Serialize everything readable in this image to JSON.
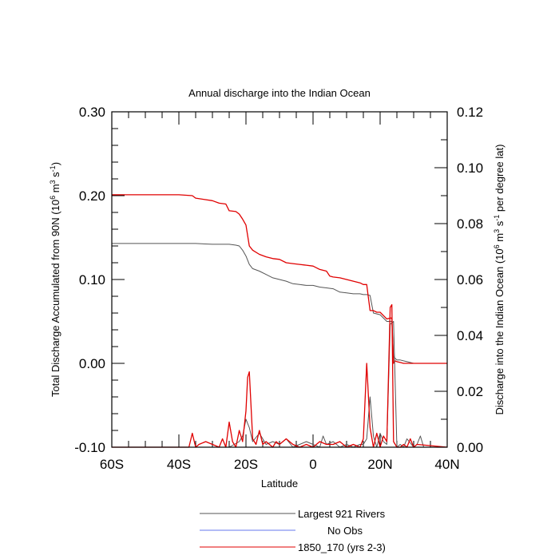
{
  "chart_data": {
    "type": "line",
    "title": "Annual discharge into the Indian Ocean",
    "xlabel": "Latitude",
    "ylabel_left_main": "Total Discharge Accumulated from 90N (10",
    "ylabel_left_exp1": "6",
    "ylabel_left_mid": " m",
    "ylabel_left_exp2": "3",
    "ylabel_left_mid2": " s",
    "ylabel_left_exp3": "-1",
    "ylabel_left_end": ")",
    "ylabel_right_main": "Discharge into the Indian Ocean (10",
    "ylabel_right_exp1": "6",
    "ylabel_right_mid": " m",
    "ylabel_right_exp2": "3",
    "ylabel_right_mid2": " s",
    "ylabel_right_exp3": "-1",
    "ylabel_right_end": " per degree lat)",
    "xlim": [
      -60,
      40
    ],
    "ylim_left": [
      -0.1,
      0.3
    ],
    "ylim_right": [
      0,
      0.12
    ],
    "x_ticks": [
      {
        "value": -60,
        "label": "60S"
      },
      {
        "value": -40,
        "label": "40S"
      },
      {
        "value": -20,
        "label": "20S"
      },
      {
        "value": 0,
        "label": "0"
      },
      {
        "value": 20,
        "label": "20N"
      },
      {
        "value": 40,
        "label": "40N"
      }
    ],
    "y_left_ticks": [
      {
        "value": 0.3,
        "label": "0.30"
      },
      {
        "value": 0.2,
        "label": "0.20"
      },
      {
        "value": 0.1,
        "label": "0.10"
      },
      {
        "value": 0.0,
        "label": "0.00"
      },
      {
        "value": -0.1,
        "label": "-0.10"
      }
    ],
    "y_right_ticks": [
      {
        "value": 0.12,
        "label": "0.12"
      },
      {
        "value": 0.1,
        "label": "0.10"
      },
      {
        "value": 0.08,
        "label": "0.08"
      },
      {
        "value": 0.06,
        "label": "0.06"
      },
      {
        "value": 0.04,
        "label": "0.04"
      },
      {
        "value": 0.02,
        "label": "0.02"
      },
      {
        "value": 0.0,
        "label": "0.00"
      }
    ],
    "legend_placement": "bottom-center",
    "series": [
      {
        "name": "Largest 921 Rivers",
        "color": "#555555",
        "axis": "left",
        "x": [
          -60,
          -45,
          -35,
          -30,
          -25,
          -23,
          -22,
          -21,
          -20,
          -19,
          -18,
          -16,
          -14,
          -12,
          -10,
          -8,
          -6,
          -4,
          -2,
          0,
          2,
          4,
          6,
          8,
          10,
          12,
          14,
          15,
          16,
          17,
          18,
          20,
          22,
          23,
          23.5,
          24,
          25,
          26,
          27,
          28,
          30,
          32,
          35,
          40
        ],
        "y": [
          0.143,
          0.143,
          0.143,
          0.142,
          0.142,
          0.141,
          0.14,
          0.135,
          0.128,
          0.118,
          0.113,
          0.11,
          0.106,
          0.102,
          0.1,
          0.098,
          0.095,
          0.094,
          0.093,
          0.093,
          0.091,
          0.09,
          0.089,
          0.085,
          0.084,
          0.083,
          0.083,
          0.082,
          0.082,
          0.081,
          0.06,
          0.058,
          0.05,
          0.05,
          0.05,
          0.008,
          0.004,
          0.004,
          0.003,
          0.002,
          0.0,
          0.0,
          0.0,
          0.0
        ]
      },
      {
        "name": "No Obs",
        "color": "#6677ee",
        "axis": "left",
        "x": [],
        "y": []
      },
      {
        "name": "1850_170 (yrs 2-3)",
        "color": "#e00000",
        "axis": "left",
        "x": [
          -60,
          -50,
          -40,
          -36,
          -35,
          -30,
          -28,
          -26,
          -25,
          -23,
          -22,
          -21,
          -20,
          -19,
          -18,
          -16,
          -14,
          -12,
          -10,
          -8,
          -6,
          -4,
          -2,
          0,
          2,
          4,
          5,
          6,
          8,
          10,
          12,
          14,
          15,
          16,
          17,
          18,
          19,
          20,
          22,
          23,
          23.5,
          24,
          24.5,
          25,
          26,
          27,
          28,
          30,
          40
        ],
        "y": [
          0.201,
          0.201,
          0.201,
          0.2,
          0.197,
          0.194,
          0.191,
          0.19,
          0.182,
          0.181,
          0.178,
          0.172,
          0.165,
          0.14,
          0.135,
          0.13,
          0.127,
          0.125,
          0.124,
          0.12,
          0.119,
          0.118,
          0.117,
          0.116,
          0.112,
          0.11,
          0.104,
          0.103,
          0.102,
          0.1,
          0.098,
          0.096,
          0.094,
          0.094,
          0.063,
          0.063,
          0.061,
          0.061,
          0.053,
          0.054,
          0.054,
          0.0,
          0.003,
          0.002,
          0.001,
          0.0,
          0.0,
          0.0,
          0.0
        ]
      },
      {
        "name": "Largest 921 Rivers",
        "color": "#555555",
        "axis": "right",
        "x": [
          -60,
          -30,
          -25,
          -22,
          -21,
          -20,
          -19,
          -18,
          -16,
          -14,
          -12,
          -10,
          -8,
          -6,
          -4,
          -2,
          0,
          2,
          3,
          4,
          6,
          8,
          10,
          12,
          14,
          15,
          16,
          17,
          18,
          19,
          20,
          21,
          22,
          23,
          24,
          25,
          26,
          27,
          28,
          30,
          31,
          32,
          33,
          40
        ],
        "y": [
          0,
          0,
          0,
          0.002,
          0.004,
          0.01,
          0.007,
          0.002,
          0.005,
          0.001,
          0.002,
          0.001,
          0.003,
          0,
          0.001,
          0.002,
          0.001,
          0,
          0.004,
          0.001,
          0.002,
          0,
          0.001,
          0,
          0.001,
          0.001,
          0.003,
          0.018,
          0.004,
          0,
          0.005,
          0.002,
          0.001,
          0.044,
          0.045,
          0,
          0.001,
          0,
          0.003,
          0,
          0.001,
          0.004,
          0,
          0
        ]
      },
      {
        "name": "1850_170 (yrs 2-3)",
        "color": "#e00000",
        "axis": "right",
        "x": [
          -60,
          -37,
          -36,
          -35,
          -34,
          -32,
          -30,
          -28,
          -27,
          -26,
          -25,
          -24,
          -23,
          -22,
          -21,
          -20,
          -19.5,
          -19,
          -18.5,
          -18,
          -17,
          -16,
          -15,
          -14,
          -13,
          -12,
          -11,
          -10,
          -8,
          -6,
          -4,
          -2,
          0,
          2,
          4,
          6,
          8,
          10,
          12,
          14,
          15,
          16,
          17,
          18,
          19,
          20,
          21,
          22,
          23,
          23.5,
          24,
          24.5,
          25,
          26,
          27,
          28,
          29,
          30,
          31,
          40
        ],
        "y": [
          0,
          0,
          0.005,
          0,
          0.001,
          0.002,
          0.001,
          0,
          0.003,
          0,
          0.009,
          0.002,
          0,
          0.006,
          0.002,
          0.013,
          0.025,
          0.027,
          0.015,
          0.003,
          0.001,
          0.006,
          0.001,
          0.002,
          0.001,
          0,
          0.002,
          0.001,
          0.003,
          0.001,
          0,
          0.001,
          0,
          0.002,
          0.001,
          0.001,
          0.002,
          0,
          0.001,
          0,
          0.003,
          0.03,
          0.007,
          0,
          0.005,
          0,
          0.004,
          0.002,
          0.05,
          0.051,
          0.002,
          0.001,
          0,
          0,
          0.001,
          0,
          0.003,
          0,
          0.001,
          0
        ]
      }
    ]
  }
}
